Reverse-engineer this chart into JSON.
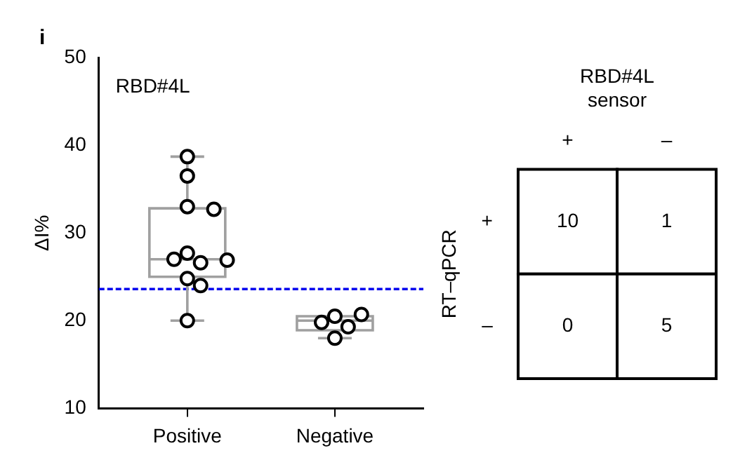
{
  "chart_data": [
    {
      "type": "box",
      "title": "RBD#4L",
      "ylabel": "ΔI%",
      "annotations": [
        "i"
      ],
      "categories": [
        "Positive",
        "Negative"
      ],
      "boxes": [
        {
          "low": 20,
          "q1": 25,
          "median": 27,
          "q3": 32.8,
          "high": 38.7
        },
        {
          "low": 18,
          "q1": 18.9,
          "median": 20,
          "q3": 20.5,
          "high": 20.5
        }
      ],
      "series": [
        {
          "type": "scatter",
          "color": "#000000",
          "x": [
            "Positive",
            "Positive",
            "Positive",
            "Positive",
            "Positive",
            "Positive",
            "Positive",
            "Positive",
            "Positive",
            "Positive",
            "Positive",
            "Negative",
            "Negative",
            "Negative",
            "Negative",
            "Negative"
          ],
          "values": [
            38.7,
            36.5,
            33,
            32.7,
            27.7,
            26.6,
            27,
            26.9,
            24.8,
            24,
            20,
            20.5,
            20.7,
            19.3,
            19.8,
            18
          ]
        }
      ],
      "ref_lines": [
        {
          "axis": "y",
          "value": 23.6,
          "color": "#0000ee",
          "line_style": "dashed"
        }
      ],
      "ylim": [
        10,
        50
      ],
      "yticks": [
        10,
        20,
        30,
        40,
        50
      ],
      "grid": false,
      "legend": false,
      "marker": "circle"
    },
    {
      "type": "heatmap",
      "title": "RBD#4L\nsensor",
      "ylabel": "RT–qPCR",
      "categories": [
        "+",
        "–"
      ],
      "y_categories": [
        "+",
        "–"
      ],
      "cells": [
        [
          10,
          1
        ],
        [
          0,
          5
        ]
      ],
      "data_labels": true
    }
  ]
}
